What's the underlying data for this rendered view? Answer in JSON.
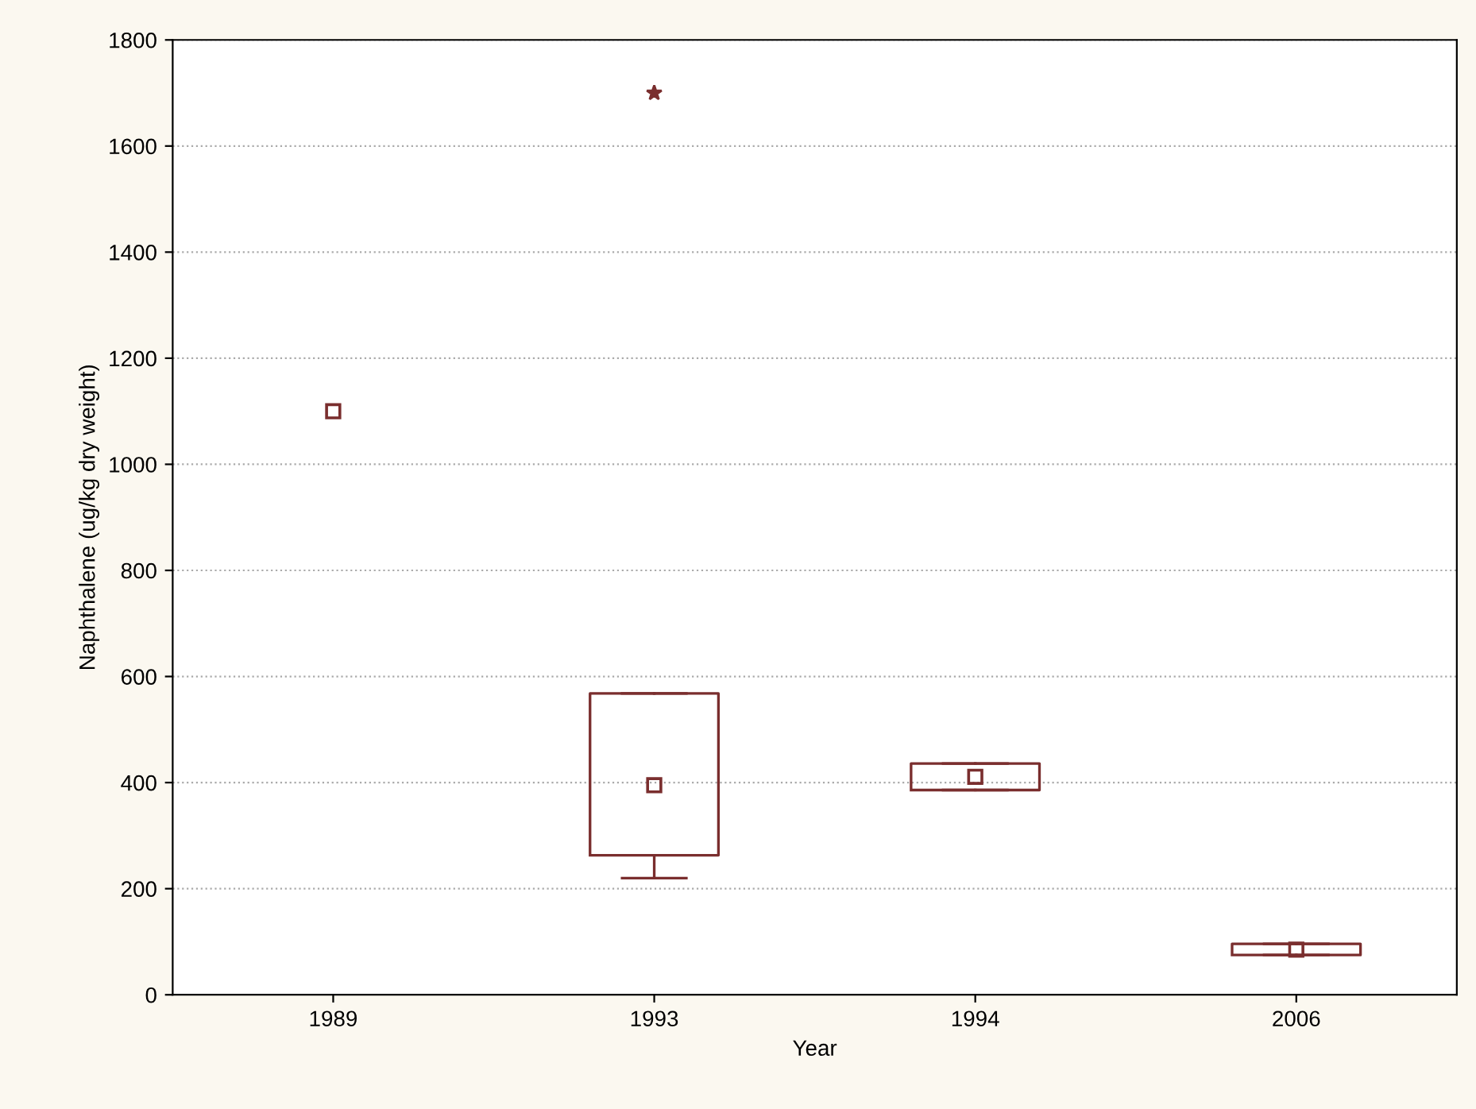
{
  "chart_data": {
    "type": "box",
    "xlabel": "Year",
    "ylabel": "Naphthalene (ug/kg dry weight)",
    "categories": [
      "1989",
      "1993",
      "1994",
      "2006"
    ],
    "boxes": [
      null,
      {
        "low": 220,
        "q1": 263,
        "median": 395,
        "q3": 568,
        "high": 568,
        "outliers": [
          1700
        ]
      },
      {
        "low": 386,
        "q1": 386,
        "median": 411,
        "q3": 436,
        "high": 436
      },
      {
        "low": 75,
        "q1": 75,
        "median": 85,
        "q3": 96,
        "high": 96
      }
    ],
    "series": [
      {
        "type": "scatter",
        "values": [
          1100,
          null,
          null,
          null
        ],
        "color": "#7a2e2e"
      }
    ],
    "color": "#7a2e2e",
    "ylim": [
      0,
      1800
    ],
    "yticks": [
      0,
      200,
      400,
      600,
      800,
      1000,
      1200,
      1400,
      1600,
      1800
    ],
    "grid": "y",
    "marker": "square",
    "legend": false
  }
}
